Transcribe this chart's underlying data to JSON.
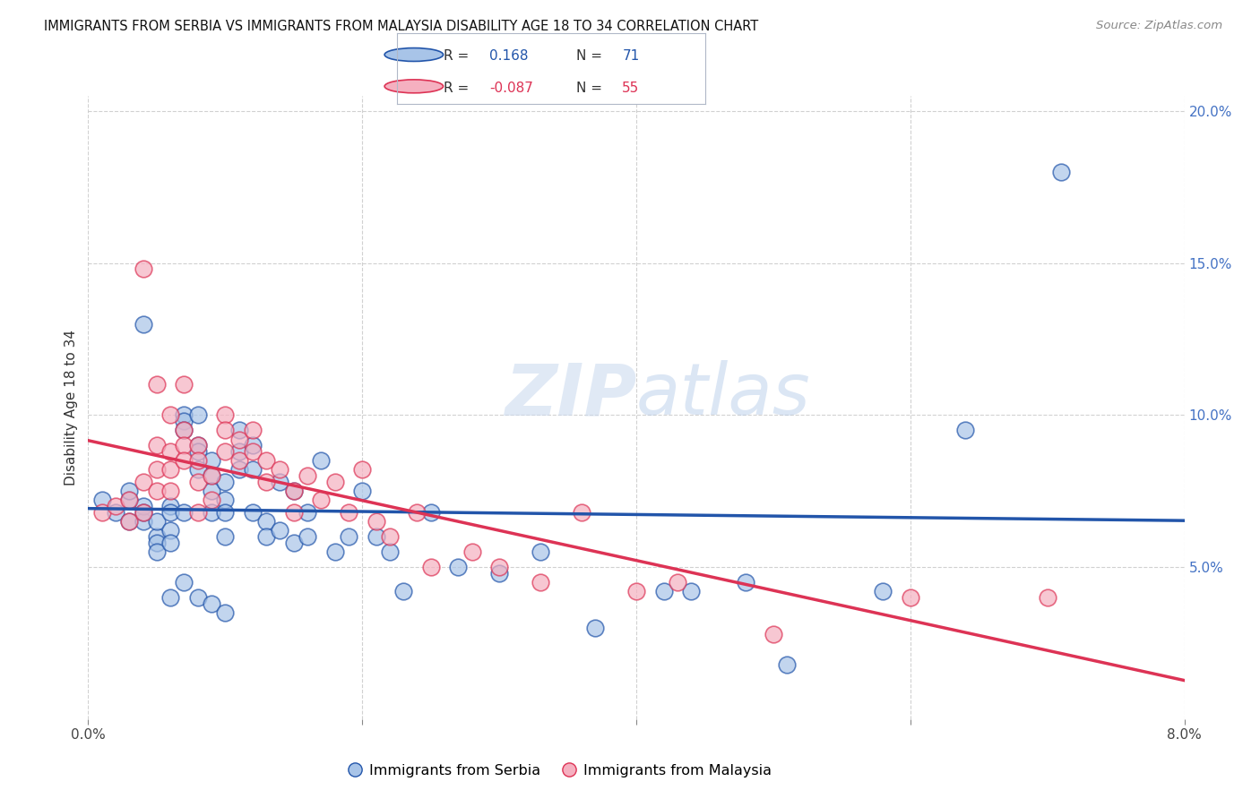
{
  "title": "IMMIGRANTS FROM SERBIA VS IMMIGRANTS FROM MALAYSIA DISABILITY AGE 18 TO 34 CORRELATION CHART",
  "source": "Source: ZipAtlas.com",
  "ylabel": "Disability Age 18 to 34",
  "xmin": 0.0,
  "xmax": 0.08,
  "ymin": 0.0,
  "ymax": 0.205,
  "yticks": [
    0.05,
    0.1,
    0.15,
    0.2
  ],
  "ytick_labels": [
    "5.0%",
    "10.0%",
    "15.0%",
    "20.0%"
  ],
  "watermark": "ZIPatlas",
  "serbia_color": "#a8c4e8",
  "malaysia_color": "#f5b0c0",
  "serbia_line_color": "#2255aa",
  "malaysia_line_color": "#dd3355",
  "serbia_R": 0.168,
  "serbia_N": 71,
  "malaysia_R": -0.087,
  "malaysia_N": 55,
  "serbia_scatter_x": [
    0.001,
    0.002,
    0.003,
    0.003,
    0.004,
    0.004,
    0.004,
    0.005,
    0.005,
    0.005,
    0.005,
    0.006,
    0.006,
    0.006,
    0.006,
    0.007,
    0.007,
    0.007,
    0.007,
    0.008,
    0.008,
    0.008,
    0.008,
    0.009,
    0.009,
    0.009,
    0.009,
    0.01,
    0.01,
    0.01,
    0.01,
    0.011,
    0.011,
    0.011,
    0.012,
    0.012,
    0.012,
    0.013,
    0.013,
    0.014,
    0.014,
    0.015,
    0.015,
    0.016,
    0.016,
    0.017,
    0.018,
    0.019,
    0.02,
    0.021,
    0.022,
    0.023,
    0.025,
    0.027,
    0.03,
    0.033,
    0.037,
    0.042,
    0.044,
    0.048,
    0.051,
    0.058,
    0.064,
    0.006,
    0.007,
    0.008,
    0.009,
    0.01,
    0.004,
    0.003,
    0.071
  ],
  "serbia_scatter_y": [
    0.072,
    0.068,
    0.065,
    0.072,
    0.065,
    0.07,
    0.068,
    0.06,
    0.065,
    0.058,
    0.055,
    0.07,
    0.068,
    0.062,
    0.058,
    0.1,
    0.098,
    0.095,
    0.068,
    0.1,
    0.09,
    0.088,
    0.082,
    0.085,
    0.08,
    0.075,
    0.068,
    0.078,
    0.072,
    0.068,
    0.06,
    0.095,
    0.088,
    0.082,
    0.09,
    0.082,
    0.068,
    0.065,
    0.06,
    0.078,
    0.062,
    0.075,
    0.058,
    0.068,
    0.06,
    0.085,
    0.055,
    0.06,
    0.075,
    0.06,
    0.055,
    0.042,
    0.068,
    0.05,
    0.048,
    0.055,
    0.03,
    0.042,
    0.042,
    0.045,
    0.018,
    0.042,
    0.095,
    0.04,
    0.045,
    0.04,
    0.038,
    0.035,
    0.13,
    0.075,
    0.18
  ],
  "malaysia_scatter_x": [
    0.001,
    0.002,
    0.003,
    0.003,
    0.004,
    0.004,
    0.005,
    0.005,
    0.005,
    0.006,
    0.006,
    0.006,
    0.007,
    0.007,
    0.007,
    0.008,
    0.008,
    0.008,
    0.009,
    0.009,
    0.01,
    0.01,
    0.01,
    0.011,
    0.011,
    0.012,
    0.012,
    0.013,
    0.013,
    0.014,
    0.015,
    0.015,
    0.016,
    0.017,
    0.018,
    0.019,
    0.02,
    0.021,
    0.022,
    0.024,
    0.025,
    0.028,
    0.03,
    0.033,
    0.036,
    0.04,
    0.043,
    0.05,
    0.06,
    0.07,
    0.004,
    0.005,
    0.006,
    0.007,
    0.008
  ],
  "malaysia_scatter_y": [
    0.068,
    0.07,
    0.065,
    0.072,
    0.078,
    0.068,
    0.09,
    0.082,
    0.075,
    0.088,
    0.082,
    0.075,
    0.095,
    0.09,
    0.085,
    0.09,
    0.085,
    0.078,
    0.08,
    0.072,
    0.1,
    0.095,
    0.088,
    0.092,
    0.085,
    0.095,
    0.088,
    0.085,
    0.078,
    0.082,
    0.075,
    0.068,
    0.08,
    0.072,
    0.078,
    0.068,
    0.082,
    0.065,
    0.06,
    0.068,
    0.05,
    0.055,
    0.05,
    0.045,
    0.068,
    0.042,
    0.045,
    0.028,
    0.04,
    0.04,
    0.148,
    0.11,
    0.1,
    0.11,
    0.068
  ]
}
